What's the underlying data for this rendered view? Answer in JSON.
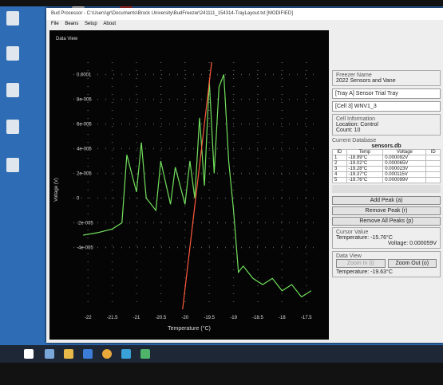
{
  "window": {
    "title": "Bud Processor - C:\\Users\\gr\\Documents\\Brock University\\BudFreezer\\241111_154314-TrayLayout.txt [MODIFIED]",
    "menu": [
      "File",
      "Beans",
      "Setup",
      "About"
    ]
  },
  "plot": {
    "title": "Data View",
    "x_label": "Temperature (°C)",
    "y_label": "Voltage (V)",
    "xlim": [
      -22.3,
      -17.2
    ],
    "ylim": [
      -9e-05,
      0.00011
    ],
    "xticks": [
      -22,
      -21.5,
      -21,
      -20.5,
      -20,
      -19.5,
      -19,
      -18.5,
      -18,
      -17.5
    ],
    "yticks": [
      {
        "value": 0.0001,
        "label": "0.0001"
      },
      {
        "value": 8e-05,
        "label": "8e-005"
      },
      {
        "value": 6e-05,
        "label": "6e-005"
      },
      {
        "value": 4e-05,
        "label": "4e-005"
      },
      {
        "value": 2e-05,
        "label": "2e-005"
      },
      0,
      {
        "value": -2e-05,
        "label": "-2e-005"
      },
      {
        "value": -4e-05,
        "label": "-4e-005"
      }
    ],
    "trace": {
      "color": "#72e05c",
      "x": [
        -22.1,
        -21.8,
        -21.5,
        -21.3,
        -21.2,
        -21.0,
        -20.9,
        -20.8,
        -20.6,
        -20.5,
        -20.3,
        -20.2,
        -20.0,
        -19.9,
        -19.8,
        -19.7,
        -19.6,
        -19.5,
        -19.4,
        -19.3,
        -19.2,
        -19.1,
        -19.0,
        -18.9,
        -18.8,
        -18.6,
        -18.4,
        -18.2,
        -18.0,
        -17.8,
        -17.6,
        -17.4
      ],
      "y": [
        -3e-05,
        -2.8e-05,
        -2.5e-05,
        -2e-05,
        3.5e-05,
        5e-06,
        4.5e-05,
        0,
        -1e-05,
        3e-05,
        -5e-06,
        2.5e-05,
        -5e-06,
        3e-05,
        0,
        6.5e-05,
        1e-05,
        9.5e-05,
        2e-05,
        9e-05,
        0.0001,
        3e-05,
        -1e-05,
        -6e-05,
        -5.5e-05,
        -6.5e-05,
        -7e-05,
        -6.5e-05,
        -7.5e-05,
        -7e-05,
        -8e-05,
        -7.5e-05
      ]
    },
    "marker": {
      "color": "#ff5a3c",
      "x": [
        -20.05,
        -19.45
      ],
      "y": [
        -9e-05,
        0.00011
      ]
    }
  },
  "panel": {
    "freezer": {
      "heading": "Freezer Name",
      "name": "2022 Sensors and Vane"
    },
    "tray": "[Tray A] Sensor Trial Tray",
    "cell": "[Cell 3] WNV1_3",
    "cell_info": {
      "heading": "Cell Information",
      "location": "Location: Control",
      "count": "Count: 10"
    },
    "database": {
      "heading": "Current Database",
      "file": "sensors.db",
      "columns": [
        "ID",
        "Temp",
        "Voltage",
        "ID"
      ],
      "rows": [
        [
          "1",
          "-18.99°C",
          "0.000092V"
        ],
        [
          "2",
          "-19.02°C",
          "0.000065V"
        ],
        [
          "3",
          "-19.28°C",
          "0.000023V"
        ],
        [
          "4",
          "-19.37°C",
          "0.000115V"
        ],
        [
          "5",
          "-19.76°C",
          "0.000099V"
        ]
      ]
    },
    "buttons": [
      "Add Peak (a)",
      "Remove Peak (r)",
      "Remove All Peaks (p)"
    ],
    "cursor": {
      "heading": "Cursor Value",
      "temperature": "Temperature: -15.76°C",
      "voltage": "Voltage: 0.000059V"
    },
    "data_view": {
      "heading": "Data View",
      "zoom_in": "Zoom In (i)",
      "zoom_out": "Zoom Out (o)",
      "temperature": "Temperature: -19.63°C"
    }
  }
}
